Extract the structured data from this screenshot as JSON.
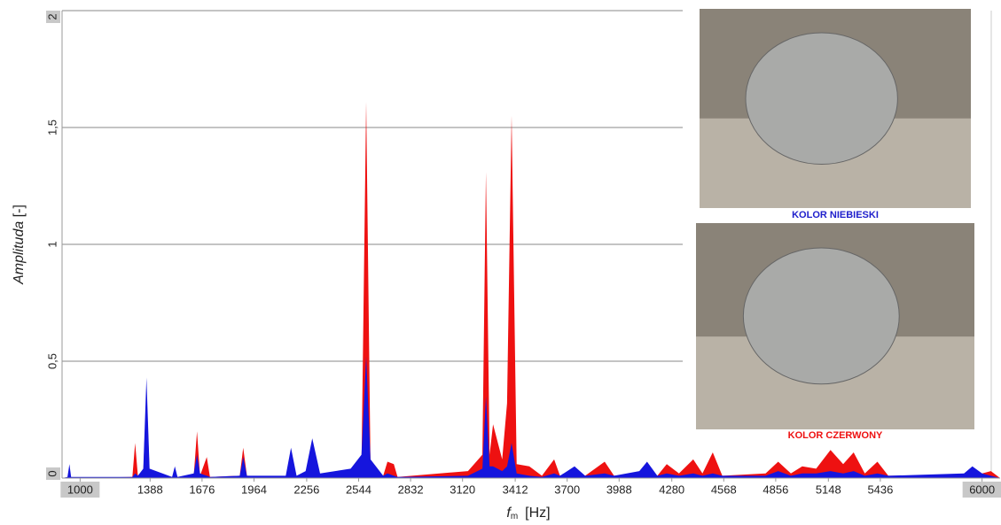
{
  "chart_data": {
    "type": "area",
    "y_label": [
      "Amplituda",
      "[-]"
    ],
    "x_label": [
      "f",
      "m",
      "[Hz]"
    ],
    "captions": [
      "KOLOR NIEBIESKI",
      "KOLOR CZERWONY"
    ],
    "xlim": [
      900,
      6100
    ],
    "ylim": [
      0,
      2
    ],
    "xticks": [
      1000,
      1388,
      1676,
      1964,
      2256,
      2544,
      2832,
      3120,
      3412,
      3700,
      3988,
      4280,
      4568,
      4856,
      5148,
      5436,
      6000
    ],
    "yticks": [
      0,
      {
        "value": 0.5,
        "label": "0,5"
      },
      1,
      {
        "value": 1.5,
        "label": "1,5"
      },
      2
    ],
    "grid": true,
    "x": [
      900,
      930,
      941,
      950,
      1290,
      1305,
      1320,
      1350,
      1368,
      1385,
      1510,
      1525,
      1540,
      1630,
      1648,
      1665,
      1702,
      1720,
      1885,
      1904,
      1925,
      2140,
      2169,
      2200,
      2250,
      2287,
      2330,
      2500,
      2560,
      2586,
      2610,
      2680,
      2704,
      2739,
      2760,
      3150,
      3230,
      3250,
      3270,
      3289,
      3340,
      3367,
      3392,
      3420,
      3490,
      3560,
      3628,
      3660,
      3741,
      3800,
      3908,
      3960,
      4100,
      4143,
      4200,
      4252,
      4320,
      4399,
      4450,
      4507,
      4560,
      4800,
      4870,
      4940,
      5003,
      5080,
      5160,
      5230,
      5288,
      5350,
      5420,
      5480,
      5900,
      5946,
      6000,
      6049,
      6100
    ],
    "series": [
      {
        "color": "#ee1111",
        "values": [
          0,
          0,
          0.005,
          0,
          0.005,
          0.15,
          0.01,
          0.02,
          0.38,
          0.02,
          0.005,
          0.01,
          0.005,
          0.01,
          0.2,
          0.01,
          0.09,
          0.005,
          0.01,
          0.13,
          0.01,
          0.005,
          0.02,
          0.005,
          0.01,
          0.02,
          0.01,
          0.02,
          0.05,
          1.61,
          0.05,
          0.01,
          0.07,
          0.06,
          0.005,
          0.03,
          0.1,
          1.31,
          0.1,
          0.23,
          0.08,
          0.32,
          1.55,
          0.06,
          0.05,
          0.01,
          0.08,
          0.01,
          0.02,
          0.01,
          0.07,
          0.01,
          0.02,
          0.03,
          0.01,
          0.06,
          0.02,
          0.08,
          0.02,
          0.11,
          0.01,
          0.02,
          0.07,
          0.02,
          0.05,
          0.04,
          0.12,
          0.06,
          0.11,
          0.02,
          0.07,
          0.01,
          0.01,
          0.03,
          0.02,
          0.03,
          0
        ]
      },
      {
        "color": "#1515dd",
        "values": [
          0,
          0.005,
          0.06,
          0.005,
          0.005,
          0.02,
          0.01,
          0.04,
          0.43,
          0.04,
          0.005,
          0.05,
          0.005,
          0.02,
          0.1,
          0.02,
          0.01,
          0.005,
          0.01,
          0.09,
          0.01,
          0.01,
          0.13,
          0.01,
          0.03,
          0.17,
          0.02,
          0.04,
          0.1,
          0.52,
          0.08,
          0.01,
          0.02,
          0.01,
          0.005,
          0.01,
          0.04,
          0.35,
          0.05,
          0.05,
          0.03,
          0.05,
          0.15,
          0.02,
          0.01,
          0.005,
          0.02,
          0.01,
          0.05,
          0.01,
          0.02,
          0.01,
          0.03,
          0.07,
          0.01,
          0.02,
          0.01,
          0.02,
          0.01,
          0.02,
          0.01,
          0.01,
          0.03,
          0.01,
          0.02,
          0.02,
          0.03,
          0.02,
          0.03,
          0.01,
          0.02,
          0.01,
          0.02,
          0.05,
          0.02,
          0.01,
          0
        ]
      }
    ]
  }
}
